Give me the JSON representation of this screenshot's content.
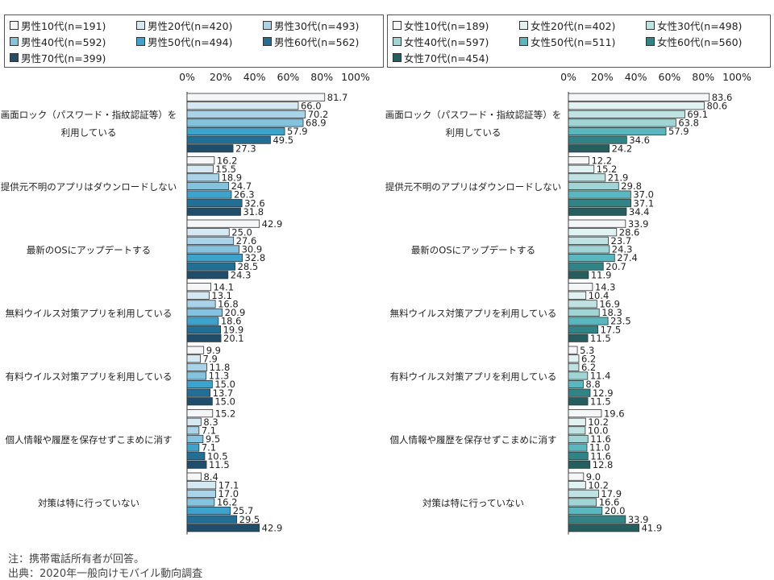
{
  "colors": {
    "male": [
      "#f4f6f7",
      "#d5e9f2",
      "#a8d3e8",
      "#82c4e0",
      "#3aa4cf",
      "#1f6f96",
      "#1f4e6d"
    ],
    "female": [
      "#f4f6f7",
      "#e1f2f2",
      "#bfe3e3",
      "#9fd5d4",
      "#58b8c0",
      "#2f8585",
      "#245e5f"
    ]
  },
  "footnotes": {
    "note": "注：携帯電話所有者が回答。",
    "source": "出典：2020年一般向けモバイル動向調査"
  },
  "chart_data": [
    {
      "type": "bar",
      "orientation": "horizontal",
      "xlim": [
        0,
        100
      ],
      "tick_labels": [
        "0%",
        "20%",
        "40%",
        "60%",
        "80%",
        "100%"
      ],
      "categories": [
        "画面ロック（パスワード・指紋認証等）を 利用している",
        "提供元不明のアプリはダウンロードしない",
        "最新のOSにアップデートする",
        "無料ウイルス対策アプリを利用している",
        "有料ウイルス対策アプリを利用している",
        "個人情報や履歴を保存せずこまめに消す",
        "対策は特に行っていない"
      ],
      "series": [
        {
          "name": "男性10代(n=191)",
          "values": [
            81.7,
            16.2,
            42.9,
            14.1,
            9.9,
            15.2,
            8.4
          ]
        },
        {
          "name": "男性20代(n=420)",
          "values": [
            66.0,
            15.5,
            25.0,
            13.1,
            7.9,
            8.3,
            17.1
          ]
        },
        {
          "name": "男性30代(n=493)",
          "values": [
            70.2,
            18.9,
            27.6,
            16.8,
            11.8,
            7.1,
            17.0
          ]
        },
        {
          "name": "男性40代(n=592)",
          "values": [
            68.9,
            24.7,
            30.9,
            20.9,
            11.3,
            9.5,
            16.2
          ]
        },
        {
          "name": "男性50代(n=494)",
          "values": [
            57.9,
            26.3,
            32.8,
            18.6,
            15.0,
            7.1,
            25.7
          ]
        },
        {
          "name": "男性60代(n=562)",
          "values": [
            49.5,
            32.6,
            28.5,
            19.9,
            13.7,
            10.5,
            29.5
          ]
        },
        {
          "name": "男性70代(n=399)",
          "values": [
            27.3,
            31.8,
            24.3,
            20.1,
            15.0,
            11.5,
            42.9
          ]
        }
      ]
    },
    {
      "type": "bar",
      "orientation": "horizontal",
      "xlim": [
        0,
        100
      ],
      "tick_labels": [
        "0%",
        "20%",
        "40%",
        "60%",
        "80%",
        "100%"
      ],
      "categories": [
        "画面ロック（パスワード・指紋認証等）を 利用している",
        "提供元不明のアプリはダウンロードしない",
        "最新のOSにアップデートする",
        "無料ウイルス対策アプリを利用している",
        "有料ウイルス対策アプリを利用している",
        "個人情報や履歴を保存せずこまめに消す",
        "対策は特に行っていない"
      ],
      "series": [
        {
          "name": "女性10代(n=189)",
          "values": [
            83.6,
            12.2,
            33.9,
            14.3,
            5.3,
            19.6,
            9.0
          ]
        },
        {
          "name": "女性20代(n=402)",
          "values": [
            80.6,
            15.2,
            28.6,
            10.4,
            6.2,
            10.2,
            10.2
          ]
        },
        {
          "name": "女性30代(n=498)",
          "values": [
            69.1,
            21.9,
            23.7,
            16.9,
            6.2,
            10.0,
            17.9
          ]
        },
        {
          "name": "女性40代(n=597)",
          "values": [
            63.8,
            29.8,
            24.3,
            18.3,
            11.4,
            11.6,
            16.6
          ]
        },
        {
          "name": "女性50代(n=511)",
          "values": [
            57.9,
            37.0,
            27.4,
            23.5,
            8.8,
            11.0,
            20.0
          ]
        },
        {
          "name": "女性60代(n=560)",
          "values": [
            34.6,
            37.1,
            20.7,
            17.5,
            12.9,
            11.6,
            33.9
          ]
        },
        {
          "name": "女性70代(n=454)",
          "values": [
            24.2,
            34.4,
            11.9,
            11.5,
            11.5,
            12.8,
            41.9
          ]
        }
      ]
    }
  ]
}
